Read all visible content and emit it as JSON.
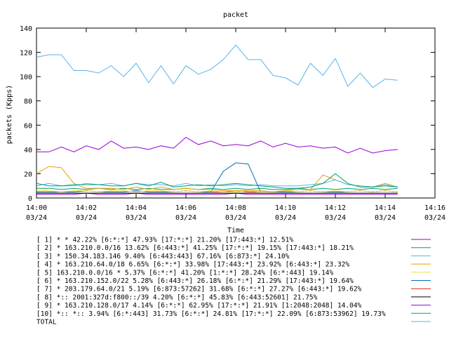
{
  "chart_data": {
    "type": "line",
    "title": "packet",
    "xlabel": "Time",
    "ylabel": "packets (Kpps)",
    "ylim": [
      0,
      140
    ],
    "yticks": [
      0,
      20,
      40,
      60,
      80,
      100,
      120,
      140
    ],
    "xlim": [
      0,
      16
    ],
    "xticks": [
      {
        "v": 0,
        "time": "14:00",
        "date": "03/24"
      },
      {
        "v": 2,
        "time": "14:02",
        "date": "03/24"
      },
      {
        "v": 4,
        "time": "14:04",
        "date": "03/24"
      },
      {
        "v": 6,
        "time": "14:06",
        "date": "03/24"
      },
      {
        "v": 8,
        "time": "14:08",
        "date": "03/24"
      },
      {
        "v": 10,
        "time": "14:10",
        "date": "03/24"
      },
      {
        "v": 12,
        "time": "14:12",
        "date": "03/24"
      },
      {
        "v": 14,
        "time": "14:14",
        "date": "03/24"
      },
      {
        "v": 16,
        "time": "14:16",
        "date": "03/24"
      }
    ],
    "grid": false,
    "legend_position": "below",
    "x": [
      0,
      0.5,
      1,
      1.5,
      2,
      2.5,
      3,
      3.5,
      4,
      4.5,
      5,
      5.5,
      6,
      6.5,
      7,
      7.5,
      8,
      8.5,
      9,
      9.5,
      10,
      10.5,
      11,
      11.5,
      12,
      12.5,
      13,
      13.5,
      14,
      14.5
    ],
    "series": [
      {
        "name": "[ 1] * * 42.22%  [6:*:*] 47.93% [17:*:*] 21.20% [17:443:*] 12.51%",
        "color": "#9400d3",
        "values": [
          38,
          38,
          42,
          38,
          43,
          40,
          47,
          41,
          42,
          40,
          43,
          41,
          50,
          44,
          47,
          43,
          44,
          43,
          47,
          42,
          45,
          42,
          43,
          41,
          42,
          37,
          41,
          37,
          39,
          40
        ]
      },
      {
        "name": "[ 2] * 163.210.0.0/16 13.62%  [6:443:*] 41.25% [17:*:*] 19.15% [17:443:*] 18.21%",
        "color": "#009e73",
        "values": [
          12,
          10,
          10,
          11,
          11,
          11,
          10,
          10,
          12,
          10,
          13,
          9,
          10,
          11,
          10,
          11,
          12,
          11,
          10,
          9,
          8,
          8,
          9,
          12,
          20,
          12,
          9,
          9,
          10,
          9
        ]
      },
      {
        "name": "[ 3] * 150.34.183.146 9.40%  [6:443:443] 67.16% [6:873:*] 24.10%",
        "color": "#56b4e9",
        "values": [
          10,
          12,
          10,
          10,
          12,
          11,
          12,
          10,
          12,
          11,
          11,
          10,
          12,
          10,
          11,
          10,
          11,
          10,
          11,
          10,
          10,
          10,
          11,
          12,
          15,
          11,
          10,
          9,
          11,
          9
        ]
      },
      {
        "name": "[ 4] * 163.210.64.0/18 6.65%  [6:*:*] 33.98% [17:443:*] 23.92% [6:443:*] 23.32%",
        "color": "#e69f00",
        "values": [
          20,
          26,
          25,
          12,
          8,
          8,
          8,
          7,
          9,
          7,
          9,
          7,
          8,
          7,
          7,
          6,
          6,
          6,
          6,
          5,
          6,
          7,
          7,
          19,
          15,
          11,
          10,
          9,
          12,
          9
        ]
      },
      {
        "name": "[ 5] 163.210.0.0/16 * 5.37%  [6:*:*] 41.20% [1:*:*] 28.24% [6:*:443] 19.14%",
        "color": "#f0e442",
        "values": [
          6,
          6,
          5,
          6,
          6,
          5,
          6,
          6,
          5,
          6,
          6,
          5,
          6,
          5,
          6,
          5,
          5,
          6,
          5,
          5,
          6,
          5,
          6,
          5,
          6,
          5,
          6,
          5,
          6,
          5
        ]
      },
      {
        "name": "[ 6] * 163.210.152.0/22 5.28%  [6:443:*] 26.18% [6:*:*] 21.29% [17:443:*] 19.64%",
        "color": "#0072b2",
        "values": [
          5,
          5,
          5,
          5,
          6,
          5,
          5,
          5,
          6,
          5,
          5,
          5,
          6,
          5,
          5,
          22,
          29,
          28,
          5,
          5,
          5,
          5,
          6,
          5,
          5,
          5,
          6,
          5,
          6,
          5
        ]
      },
      {
        "name": "[ 7] * 203.179.64.0/21 5.19%  [6:873:57262] 31.68% [6:*:*] 27.27% [6:443:*] 19.62%",
        "color": "#e51e10",
        "values": [
          5,
          5,
          5,
          5,
          6,
          5,
          5,
          5,
          6,
          5,
          5,
          5,
          6,
          5,
          5,
          5,
          6,
          5,
          5,
          5,
          5,
          5,
          6,
          5,
          5,
          5,
          6,
          5,
          6,
          5
        ]
      },
      {
        "name": "[ 8] *:: 2001:327d:f800::/39 4.20%  [6:*:*] 45.83% [6:443:52601] 21.75%",
        "color": "#000000",
        "values": [
          4,
          4,
          4,
          4,
          4,
          4,
          4,
          4,
          4,
          4,
          4,
          4,
          4,
          4,
          4,
          4,
          4,
          4,
          4,
          4,
          4,
          4,
          4,
          4,
          4,
          4,
          4,
          4,
          4,
          4
        ]
      },
      {
        "name": "[ 9] * 163.210.128.0/17 4.14%  [6:*:*] 62.95% [17:*:*] 21.91% [1:2048:2048] 14.04%",
        "color": "#9400d3",
        "values": [
          3,
          3,
          3,
          3,
          4,
          3,
          3,
          3,
          4,
          3,
          3,
          3,
          3,
          3,
          3,
          3,
          4,
          3,
          3,
          3,
          3,
          3,
          3,
          3,
          3,
          3,
          3,
          3,
          3,
          3
        ]
      },
      {
        "name": "[10] *:: *:: 3.94%  [6:*:443] 31.73% [6:*:*] 24.81% [17:*:*] 22.09% [6:873:53962] 19.73%",
        "color": "#009e73",
        "values": [
          8,
          8,
          7,
          8,
          7,
          8,
          7,
          8,
          7,
          8,
          7,
          7,
          8,
          7,
          8,
          7,
          8,
          7,
          8,
          7,
          7,
          8,
          7,
          8,
          7,
          8,
          7,
          8,
          7,
          8
        ]
      },
      {
        "name": "TOTAL",
        "color": "#56b4e9",
        "values": [
          116,
          118,
          118,
          105,
          105,
          103,
          109,
          100,
          111,
          95,
          109,
          94,
          109,
          102,
          106,
          114,
          126,
          114,
          114,
          101,
          99,
          93,
          111,
          101,
          115,
          92,
          103,
          91,
          98,
          97
        ]
      }
    ]
  }
}
